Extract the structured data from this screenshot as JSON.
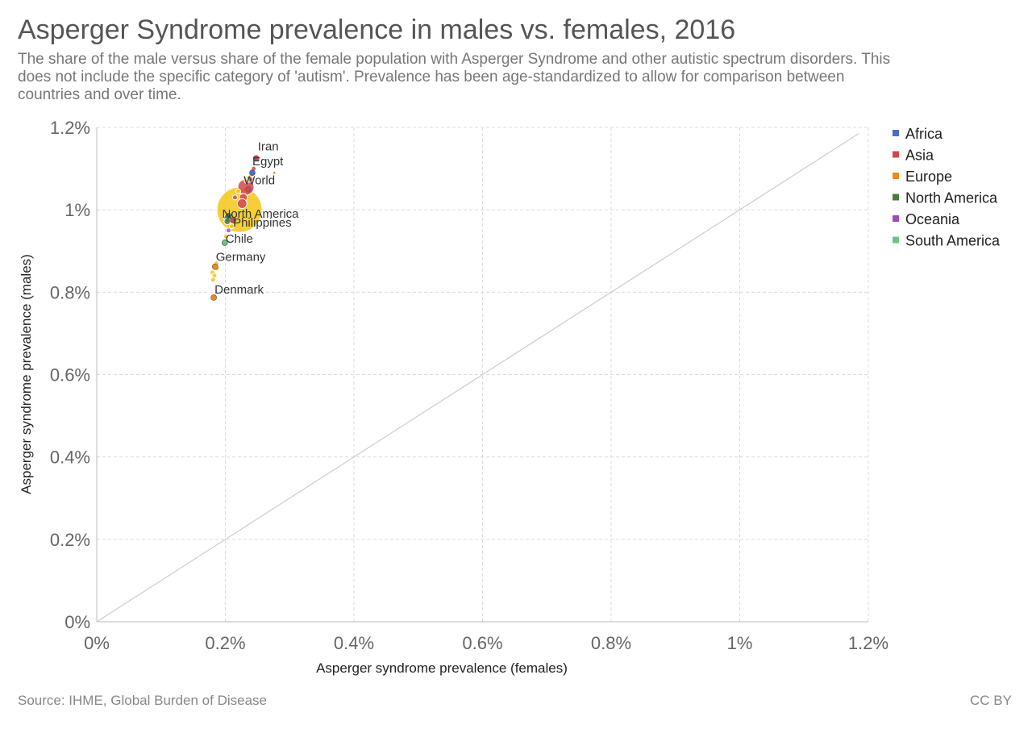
{
  "header": {
    "title": "Asperger Syndrome prevalence in males vs. females, 2016",
    "subtitle": "The share of the male versus share of the female population with Asperger Syndrome and other autistic spectrum disorders. This does not include the specific category of 'autism'. Prevalence has been age-standardized to allow for comparison between countries and over time."
  },
  "footer": {
    "source": "Source: IHME, Global Burden of Disease",
    "license": "CC BY"
  },
  "chart_data": {
    "type": "scatter",
    "xlabel": "Asperger syndrome prevalence (females)",
    "ylabel": "Asperger syndrome prevalence (males)",
    "xlim": [
      0,
      1.2
    ],
    "ylim": [
      0,
      1.2
    ],
    "x_ticks": [
      "0%",
      "0.2%",
      "0.4%",
      "0.6%",
      "0.8%",
      "1%",
      "1.2%"
    ],
    "y_ticks": [
      "0%",
      "0.2%",
      "0.4%",
      "0.6%",
      "0.8%",
      "1%",
      "1.2%"
    ],
    "grid": true,
    "reference_line": "y = x",
    "legend_position": "right",
    "legend": [
      {
        "name": "Africa",
        "color": "#4c6cc6"
      },
      {
        "name": "Asia",
        "color": "#d2484f"
      },
      {
        "name": "Europe",
        "color": "#ed8b1a"
      },
      {
        "name": "North America",
        "color": "#4a7b3f"
      },
      {
        "name": "Oceania",
        "color": "#a04bb8"
      },
      {
        "name": "South America",
        "color": "#6bc485"
      }
    ],
    "labeled_points": [
      {
        "label": "Iran",
        "x": 0.248,
        "y": 1.125,
        "color": "#d2484f"
      },
      {
        "label": "Egypt",
        "x": 0.242,
        "y": 1.09,
        "color": "#4c6cc6"
      },
      {
        "label": "World",
        "x": 0.236,
        "y": 1.05,
        "color": "#d2484f"
      },
      {
        "label": "North America",
        "x": 0.205,
        "y": 0.985,
        "color": "#4a7b3f"
      },
      {
        "label": "Philippines",
        "x": 0.212,
        "y": 0.975,
        "color": "#d2484f"
      },
      {
        "label": "Chile",
        "x": 0.199,
        "y": 0.92,
        "color": "#6bc485"
      },
      {
        "label": "Germany",
        "x": 0.184,
        "y": 0.862,
        "color": "#ed8b1a"
      },
      {
        "label": "Denmark",
        "x": 0.182,
        "y": 0.787,
        "color": "#ed8b1a"
      }
    ],
    "points": [
      {
        "x": 0.222,
        "y": 1.0,
        "color": "#f5c518",
        "r": 28
      },
      {
        "x": 0.232,
        "y": 1.055,
        "color": "#d2484f",
        "r": 10
      },
      {
        "x": 0.228,
        "y": 1.03,
        "color": "#d2484f",
        "r": 5
      },
      {
        "x": 0.226,
        "y": 1.015,
        "color": "#d2484f",
        "r": 6
      },
      {
        "x": 0.238,
        "y": 1.075,
        "color": "#d2484f",
        "r": 4
      },
      {
        "x": 0.244,
        "y": 1.1,
        "color": "#d2484f",
        "r": 3
      },
      {
        "x": 0.276,
        "y": 1.09,
        "color": "#ed8b1a",
        "r": 2
      },
      {
        "x": 0.24,
        "y": 1.085,
        "color": "#f5c518",
        "r": 3
      },
      {
        "x": 0.233,
        "y": 1.07,
        "color": "#f5c518",
        "r": 3
      },
      {
        "x": 0.22,
        "y": 1.045,
        "color": "#f5c518",
        "r": 3
      },
      {
        "x": 0.215,
        "y": 1.03,
        "color": "#d2484f",
        "r": 3
      },
      {
        "x": 0.204,
        "y": 0.98,
        "color": "#4a7b3f",
        "r": 5
      },
      {
        "x": 0.203,
        "y": 0.972,
        "color": "#4a7b3f",
        "r": 4
      },
      {
        "x": 0.21,
        "y": 0.96,
        "color": "#f5c518",
        "r": 3
      },
      {
        "x": 0.205,
        "y": 0.95,
        "color": "#a04bb8",
        "r": 3
      },
      {
        "x": 0.201,
        "y": 0.935,
        "color": "#f5c518",
        "r": 3
      },
      {
        "x": 0.199,
        "y": 0.918,
        "color": "#6bc485",
        "r": 3
      },
      {
        "x": 0.199,
        "y": 0.925,
        "color": "#4c6cc6",
        "r": 2
      },
      {
        "x": 0.186,
        "y": 0.87,
        "color": "#f5c518",
        "r": 3
      },
      {
        "x": 0.184,
        "y": 0.862,
        "color": "#ed8b1a",
        "r": 3
      },
      {
        "x": 0.187,
        "y": 0.858,
        "color": "#f5c518",
        "r": 3
      },
      {
        "x": 0.18,
        "y": 0.848,
        "color": "#f5c518",
        "r": 3
      },
      {
        "x": 0.183,
        "y": 0.84,
        "color": "#f5c518",
        "r": 3
      },
      {
        "x": 0.181,
        "y": 0.83,
        "color": "#f5c518",
        "r": 3
      },
      {
        "x": 0.182,
        "y": 0.787,
        "color": "#ed8b1a",
        "r": 3
      }
    ]
  }
}
